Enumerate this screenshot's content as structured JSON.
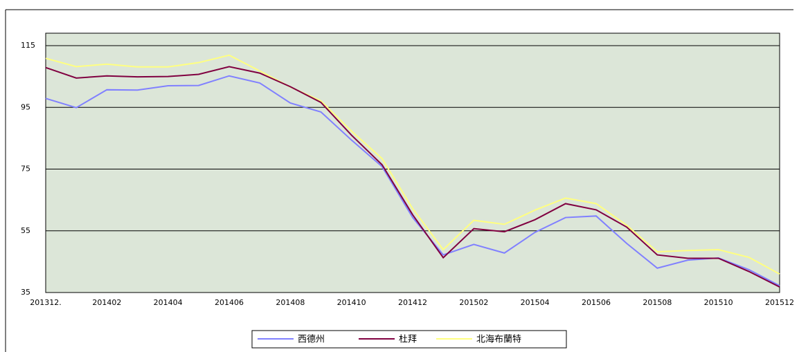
{
  "chart_data": {
    "type": "line",
    "categories": [
      "201312.",
      null,
      "201402",
      null,
      "201404",
      null,
      "201406",
      null,
      "201408",
      null,
      "201410",
      null,
      "201412",
      null,
      "201502",
      null,
      "201504",
      null,
      "201506",
      null,
      "201508",
      null,
      "201510",
      null,
      "201512"
    ],
    "series": [
      {
        "name": "西德州",
        "color": "#8080ff",
        "values": [
          97.9,
          94.9,
          100.7,
          100.6,
          102.0,
          102.1,
          105.2,
          102.9,
          96.4,
          93.5,
          84.4,
          75.8,
          59.3,
          47.2,
          50.6,
          47.8,
          54.5,
          59.3,
          59.8,
          50.9,
          42.9,
          45.5,
          46.2,
          42.4,
          37.2
        ]
      },
      {
        "name": "杜拜",
        "color": "#800040",
        "values": [
          107.9,
          104.5,
          105.2,
          104.9,
          105.0,
          105.7,
          108.2,
          106.1,
          101.7,
          96.6,
          86.0,
          76.4,
          60.2,
          46.3,
          55.7,
          54.7,
          58.6,
          63.8,
          61.8,
          56.2,
          47.2,
          46.1,
          46.1,
          41.8,
          36.8
        ]
      },
      {
        "name": "北海布蘭特",
        "color": "#ffff80",
        "values": [
          110.9,
          108.2,
          109.0,
          108.1,
          108.1,
          109.5,
          111.9,
          106.8,
          101.6,
          97.1,
          87.3,
          78.4,
          62.2,
          48.9,
          58.4,
          57.1,
          61.7,
          65.6,
          63.8,
          56.8,
          48.2,
          48.6,
          48.9,
          46.4,
          41.0
        ]
      }
    ],
    "ylim": [
      35,
      115
    ],
    "yticks": [
      35,
      55,
      75,
      95,
      115
    ],
    "grid": true,
    "legend": "bottom"
  }
}
